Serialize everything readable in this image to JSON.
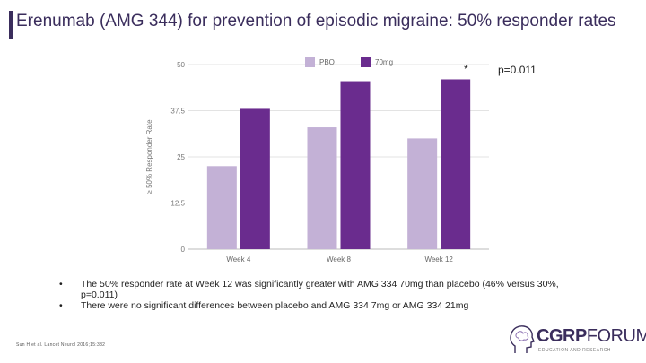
{
  "slide": {
    "title": "Erenumab (AMG 344) for prevention of episodic migraine: 50% responder rates",
    "bullets": [
      "The 50% responder rate at Week 12 was significantly greater with AMG 334 70mg than placebo (46% versus 30%, p=0.011)",
      "There were no significant differences between placebo and AMG 334 7mg or AMG 334 21mg"
    ],
    "bullet_symbol": "•",
    "citation": "Sun H et al. Lancet Neurol 2016;15:382",
    "annotation_star": "*",
    "annotation_p": "p=0.011"
  },
  "logo": {
    "bold": "CGRP",
    "light": "FORUM",
    "sub": "EDUCATION AND RESEARCH",
    "icon": "brain-head-icon"
  },
  "chart_data": {
    "type": "bar",
    "categories": [
      "Week 4",
      "Week 8",
      "Week 12"
    ],
    "series": [
      {
        "name": "PBO",
        "values": [
          22.5,
          33,
          30
        ],
        "color": "#c3b1d6"
      },
      {
        "name": "70mg",
        "values": [
          38,
          45.5,
          46
        ],
        "color": "#6a2c8e"
      }
    ],
    "ylabel": "≥ 50% Responder Rate",
    "yticks": [
      "0",
      "12.5",
      "25",
      "37.5",
      "50"
    ],
    "ylim": [
      0,
      50
    ],
    "legend_position": "top"
  }
}
